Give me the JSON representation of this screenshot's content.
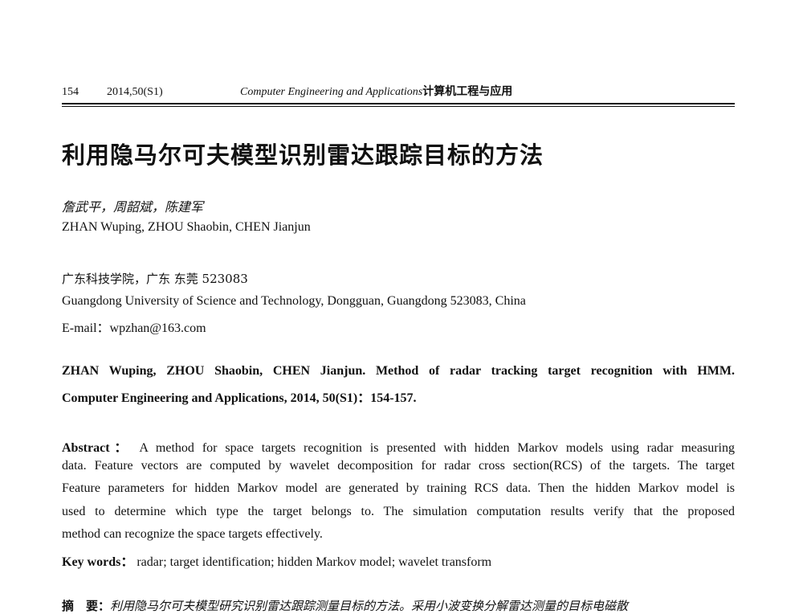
{
  "header": {
    "page_number": "154",
    "volume": "2014,50(S1)",
    "journal_en": "Computer Engineering and Applications",
    "journal_cn": "计算机工程与应用"
  },
  "title": "利用隐马尔可夫模型识别雷达跟踪目标的方法",
  "authors_cn": "詹武平，周韶斌，陈建军",
  "authors_en": "ZHAN Wuping, ZHOU Shaobin, CHEN Jianjun",
  "affiliation_cn": "广东科技学院，广东 东莞 523083",
  "affiliation_en": "Guangdong University of Science and Technology, Dongguan, Guangdong 523083, China",
  "email": "E-mail：wpzhan@163.com",
  "citation": [
    "ZHAN Wuping, ZHOU Shaobin, CHEN Jianjun. Method of radar tracking target recognition with HMM.",
    "Computer Engineering and Applications, 2014, 50(S1)：154-157."
  ],
  "abstract": {
    "label": "Abstract：",
    "lines": [
      "A method for space targets recognition is presented with hidden Markov models using radar measuring",
      "data. Feature vectors are computed by wavelet decomposition for radar cross section(RCS) of the targets. The target",
      "Feature parameters for hidden Markov model are generated by training RCS data. Then the hidden Markov model is",
      "used to determine which type the target belongs to. The simulation computation results verify that the proposed",
      "method can recognize the space targets effectively."
    ]
  },
  "keywords": {
    "label": "Key words：",
    "text": "radar; target identification; hidden Markov model; wavelet transform"
  },
  "abstract_cn": {
    "label": "摘　要：",
    "text": "利用隐马尔可夫模型研究识别雷达跟踪测量目标的方法。采用小波变换分解雷达测量的目标电磁散"
  }
}
